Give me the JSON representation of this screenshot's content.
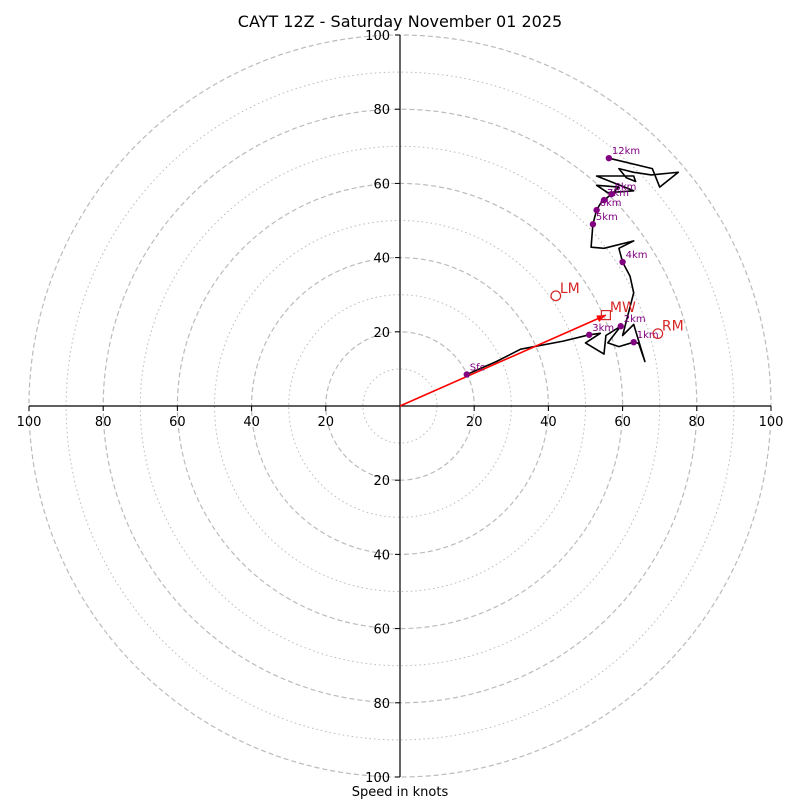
{
  "chart_data": {
    "type": "hodograph",
    "title": "CAYT 12Z - Saturday November 01 2025",
    "xlabel": "Speed in knots",
    "units": "knots",
    "range": [
      -100,
      100
    ],
    "ring_major": [
      20,
      40,
      60,
      80,
      100
    ],
    "ring_minor": [
      10,
      30,
      50,
      70,
      90
    ],
    "x_tick_labels": [
      "100",
      "80",
      "60",
      "40",
      "20",
      "20",
      "40",
      "60",
      "80",
      "100"
    ],
    "x_tick_values": [
      -100,
      -80,
      -60,
      -40,
      -20,
      20,
      40,
      60,
      80,
      100
    ],
    "y_tick_labels": [
      "100",
      "80",
      "60",
      "40",
      "20",
      "20",
      "40",
      "60",
      "80",
      "100"
    ],
    "y_tick_values": [
      100,
      80,
      60,
      40,
      20,
      -20,
      -40,
      -60,
      -80,
      -100
    ],
    "trace": [
      [
        18,
        8.5
      ],
      [
        26,
        12
      ],
      [
        32.5,
        15.3
      ],
      [
        44,
        17.5
      ],
      [
        51,
        19.2
      ],
      [
        54,
        19.6
      ],
      [
        50,
        17
      ],
      [
        55,
        14
      ],
      [
        55.5,
        19
      ],
      [
        59.5,
        21.5
      ],
      [
        56,
        17
      ],
      [
        59,
        16
      ],
      [
        63,
        17.2
      ],
      [
        64.3,
        16.9
      ],
      [
        66,
        12
      ],
      [
        63,
        22
      ],
      [
        60,
        19
      ],
      [
        63,
        30.5
      ],
      [
        62,
        35
      ],
      [
        60,
        38.8
      ],
      [
        59,
        42.5
      ],
      [
        63,
        44.5
      ],
      [
        55,
        42.5
      ],
      [
        51.5,
        42.8
      ],
      [
        52,
        49
      ],
      [
        53,
        52.8
      ],
      [
        54,
        54.5
      ],
      [
        55,
        55.5
      ],
      [
        57,
        57.1
      ],
      [
        59,
        59
      ],
      [
        53,
        59.5
      ],
      [
        56,
        57.5
      ],
      [
        63,
        58
      ],
      [
        58,
        60
      ],
      [
        53,
        62
      ],
      [
        63,
        62
      ],
      [
        63.5,
        60.5
      ],
      [
        61,
        61.5
      ],
      [
        59,
        64
      ],
      [
        63,
        63
      ],
      [
        67.7,
        62.3
      ],
      [
        73,
        62.8
      ],
      [
        75,
        63
      ],
      [
        70,
        59
      ],
      [
        68,
        64
      ],
      [
        56.3,
        66.8
      ]
    ],
    "height_markers": [
      {
        "label": "Sfc",
        "u": 18,
        "v": 8.5
      },
      {
        "label": "1km",
        "u": 63,
        "v": 17.2
      },
      {
        "label": "2km",
        "u": 59.5,
        "v": 21.5
      },
      {
        "label": "3km",
        "u": 51,
        "v": 19.2
      },
      {
        "label": "4km",
        "u": 60,
        "v": 38.8
      },
      {
        "label": "5km",
        "u": 52,
        "v": 49
      },
      {
        "label": "6km",
        "u": 53,
        "v": 52.8
      },
      {
        "label": "7km",
        "u": 55,
        "v": 55.5
      },
      {
        "label": "8km",
        "u": 57,
        "v": 57.1
      },
      {
        "label": "12km",
        "u": 56.3,
        "v": 66.8
      }
    ],
    "storm_motions": [
      {
        "label": "LM",
        "u": 42,
        "v": 29.7
      },
      {
        "label": "RM",
        "u": 69.5,
        "v": 19.5
      },
      {
        "label": "MW",
        "u": 55.5,
        "v": 24.5
      }
    ],
    "vector": {
      "u": 55.5,
      "v": 24.5
    },
    "colors": {
      "trace": "#000000",
      "marker": "#800080",
      "storm": "#d62728",
      "vector": "#ff0000",
      "ring": "#bbbbbb",
      "axis": "#000000"
    }
  }
}
